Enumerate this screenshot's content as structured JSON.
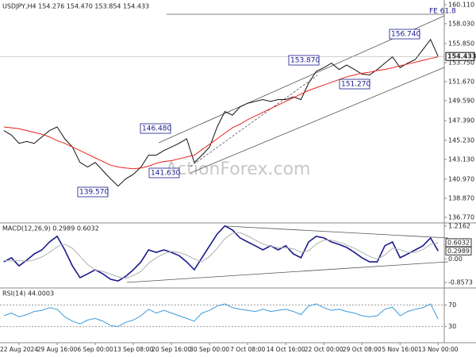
{
  "chart_data": [
    {
      "type": "line",
      "title": "USDJPY,H4 154.276 154.470 153.854 154.433",
      "watermark": "ActionForex.com",
      "xlim": [
        -0.5,
        57.8
      ],
      "ylim": [
        136.25,
        160.63
      ],
      "yticks": [
        {
          "value": 160.11,
          "label": "160.110"
        },
        {
          "value": 158.03,
          "label": "158.030"
        },
        {
          "value": 155.85,
          "label": "155.850"
        },
        {
          "value": 153.75,
          "label": "153.750"
        },
        {
          "value": 151.67,
          "label": "151.670"
        },
        {
          "value": 149.59,
          "label": "149.590"
        },
        {
          "value": 147.39,
          "label": "147.390"
        },
        {
          "value": 145.23,
          "label": "145.230"
        },
        {
          "value": 143.13,
          "label": "143.130"
        },
        {
          "value": 140.97,
          "label": "140.970"
        },
        {
          "value": 138.87,
          "label": "138.870"
        },
        {
          "value": 136.77,
          "label": "136.770"
        }
      ],
      "last_value": 154.433,
      "annotations": [
        "146.480",
        "141.630",
        "139.570",
        "153.870",
        "151.270",
        "156.740",
        "FE 61.8"
      ],
      "series": [
        {
          "color": "#111111",
          "values": [
            146.3,
            145.8,
            144.9,
            145.1,
            144.9,
            145.6,
            146.3,
            146.7,
            145.4,
            144.5,
            142.8,
            142.3,
            142.8,
            141.9,
            141.0,
            140.2,
            141.0,
            141.5,
            142.3,
            143.6,
            143.6,
            144.1,
            144.5,
            144.9,
            145.4,
            142.8,
            143.6,
            144.5,
            146.7,
            148.4,
            148.0,
            148.9,
            149.3,
            149.5,
            149.7,
            149.5,
            149.7,
            149.7,
            150.0,
            149.7,
            151.5,
            152.8,
            153.2,
            153.7,
            153.0,
            153.5,
            153.0,
            152.5,
            152.4,
            153.0,
            153.7,
            154.4,
            153.2,
            153.7,
            154.1,
            155.2,
            156.3,
            154.433
          ]
        },
        {
          "color": "#e8231c",
          "values": [
            146.7,
            146.6,
            146.5,
            146.3,
            146.1,
            145.9,
            145.6,
            145.2,
            144.9,
            144.5,
            144.1,
            143.7,
            143.3,
            142.9,
            142.5,
            142.3,
            142.2,
            142.1,
            142.2,
            142.4,
            142.7,
            142.9,
            143.0,
            143.2,
            143.4,
            143.6,
            144.2,
            144.8,
            145.4,
            146.0,
            146.6,
            147.0,
            147.5,
            147.9,
            148.3,
            148.7,
            149.1,
            149.5,
            149.9,
            150.3,
            150.7,
            151.0,
            151.3,
            151.6,
            151.9,
            152.2,
            152.4,
            152.6,
            152.7,
            152.9,
            153.0,
            153.2,
            153.4,
            153.6,
            153.8,
            154.0,
            154.2,
            154.4
          ]
        }
      ]
    },
    {
      "type": "line",
      "title": "MACD(12,26,9) 0.2989 0.6032",
      "xlim": [
        -0.5,
        57.8
      ],
      "ylim": [
        -1.03,
        1.3
      ],
      "yticks": [
        1.2162,
        {
          "value": 0,
          "label": "0.00"
        },
        -0.8573
      ],
      "last_values": [
        0.6032,
        0.2989
      ],
      "series": [
        {
          "color": "#1a1a8c",
          "values": [
            -0.1,
            0.05,
            -0.25,
            -0.04,
            0.19,
            0.34,
            0.63,
            0.84,
            0.34,
            -0.25,
            -0.68,
            -0.54,
            -0.39,
            -0.54,
            -0.74,
            -0.8,
            -0.63,
            -0.39,
            -0.1,
            0.34,
            0.25,
            0.34,
            0.25,
            0.13,
            -0.1,
            -0.39,
            0.05,
            0.49,
            0.92,
            1.22,
            1.07,
            0.78,
            0.63,
            0.49,
            0.34,
            0.49,
            0.34,
            0.49,
            0.19,
            0.05,
            0.63,
            0.84,
            0.78,
            0.63,
            0.54,
            0.43,
            0.25,
            0.05,
            -0.1,
            -0.1,
            0.49,
            0.63,
            0.05,
            0.19,
            0.34,
            0.49,
            0.78,
            0.3
          ]
        },
        {
          "color": "#b0b0b0",
          "values": [
            -0.05,
            -0.06,
            -0.05,
            -0.08,
            -0.03,
            0.08,
            0.25,
            0.45,
            0.55,
            0.4,
            0.1,
            -0.2,
            -0.4,
            -0.45,
            -0.55,
            -0.65,
            -0.7,
            -0.6,
            -0.45,
            -0.15,
            0.05,
            0.2,
            0.28,
            0.25,
            0.15,
            0.0,
            -0.1,
            0.1,
            0.4,
            0.75,
            0.95,
            0.98,
            0.85,
            0.7,
            0.55,
            0.48,
            0.42,
            0.42,
            0.38,
            0.25,
            0.3,
            0.55,
            0.7,
            0.7,
            0.62,
            0.52,
            0.4,
            0.25,
            0.1,
            0.0,
            0.15,
            0.4,
            0.35,
            0.25,
            0.25,
            0.35,
            0.55,
            0.6
          ]
        }
      ]
    },
    {
      "type": "line",
      "title": "RSI(14) 44.0003",
      "xlim": [
        -0.5,
        57.8
      ],
      "ylim": [
        0,
        100
      ],
      "yticks": [
        70,
        30
      ],
      "grid": true,
      "xticks": [
        {
          "value": 2,
          "label": "22 Aug 2024"
        },
        {
          "value": 7,
          "label": "29 Aug 16:00"
        },
        {
          "value": 12,
          "label": "6 Sep 00:00"
        },
        {
          "value": 17,
          "label": "13 Sep 08:00"
        },
        {
          "value": 22,
          "label": "20 Sep 16:00"
        },
        {
          "value": 27,
          "label": "30 Sep 00:00"
        },
        {
          "value": 32,
          "label": "7 Oct 08:00"
        },
        {
          "value": 37,
          "label": "14 Oct 16:00"
        },
        {
          "value": 42,
          "label": "22 Oct 00:00"
        },
        {
          "value": 47,
          "label": "29 Oct 08:00"
        },
        {
          "value": 52,
          "label": "5 Nov 16:00"
        },
        {
          "value": 57,
          "label": "13 Nov 00:00"
        }
      ],
      "series": [
        {
          "color": "#3a9bdc",
          "values": [
            50,
            55,
            48,
            52,
            58,
            60,
            65,
            62,
            48,
            40,
            35,
            42,
            45,
            40,
            32,
            30,
            38,
            42,
            50,
            62,
            55,
            60,
            55,
            50,
            45,
            40,
            55,
            60,
            68,
            72,
            65,
            62,
            60,
            58,
            62,
            58,
            60,
            62,
            58,
            52,
            68,
            72,
            65,
            60,
            62,
            58,
            55,
            50,
            48,
            50,
            62,
            66,
            50,
            58,
            62,
            65,
            72,
            44
          ]
        }
      ]
    }
  ]
}
